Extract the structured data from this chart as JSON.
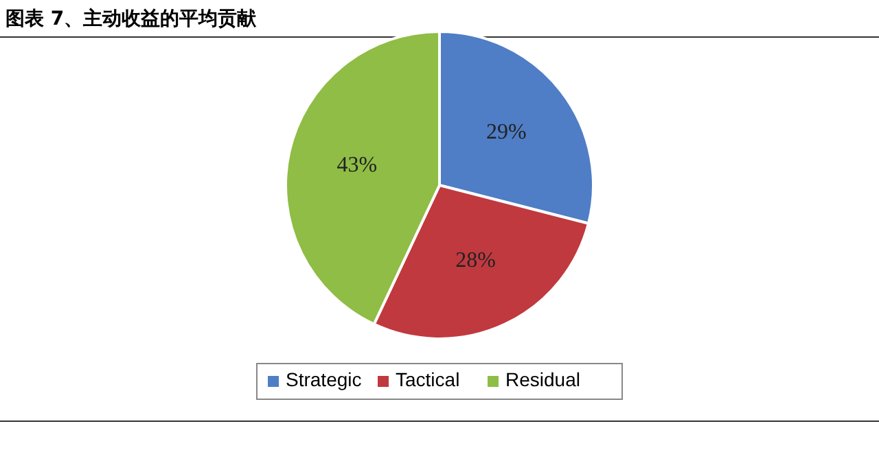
{
  "chart_data": {
    "type": "pie",
    "title": "图表 7、主动收益的平均贡献",
    "categories": [
      "Strategic",
      "Tactical",
      "Residual"
    ],
    "values": [
      29,
      28,
      43
    ],
    "colors": [
      "#4f7ec6",
      "#c0393f",
      "#8fbd45"
    ],
    "value_labels": [
      "29%",
      "28%",
      "43%"
    ],
    "legend": "bottom"
  }
}
